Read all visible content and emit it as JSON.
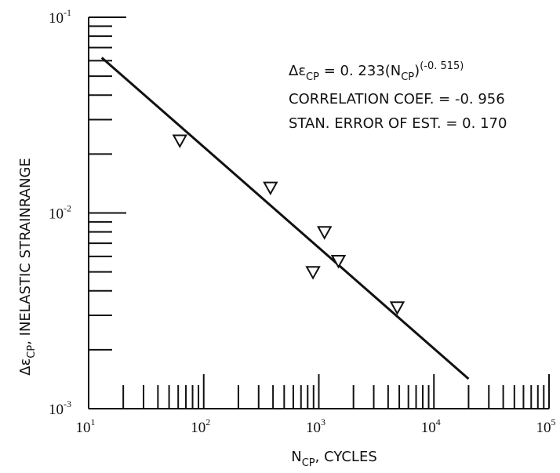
{
  "chart_data": {
    "type": "scatter",
    "title": "",
    "x_scale": "log",
    "y_scale": "log",
    "xlim": [
      10,
      100000
    ],
    "ylim": [
      0.001,
      0.1
    ],
    "grid": false,
    "xlabel": {
      "main": "N",
      "sub": "CP",
      "rest": ", CYCLES"
    },
    "ylabel": {
      "pre": "Δε",
      "sub": "CP",
      "rest": ", INELASTIC STRAINRANGE"
    },
    "x_ticks": [
      {
        "base": "10",
        "exp": "1"
      },
      {
        "base": "10",
        "exp": "2"
      },
      {
        "base": "10",
        "exp": "3"
      },
      {
        "base": "10",
        "exp": "4"
      },
      {
        "base": "10",
        "exp": "5"
      }
    ],
    "y_ticks": [
      {
        "base": "10",
        "exp": "-1"
      },
      {
        "base": "10",
        "exp": "-2"
      },
      {
        "base": "10",
        "exp": "-3"
      }
    ],
    "marker": "down-triangle",
    "points": [
      {
        "x": 62,
        "y": 0.0235
      },
      {
        "x": 380,
        "y": 0.0135
      },
      {
        "x": 890,
        "y": 0.005
      },
      {
        "x": 1120,
        "y": 0.008
      },
      {
        "x": 1480,
        "y": 0.0057
      },
      {
        "x": 4800,
        "y": 0.0033
      }
    ],
    "fit": {
      "coefficient": 0.233,
      "exponent": -0.515,
      "x_range": [
        13,
        20000
      ]
    },
    "annotations": {
      "equation": {
        "pre": "Δε",
        "sub": "CP",
        "mid": " = 0. 233(N",
        "sub2": "CP",
        "close": ")",
        "sup": "(-0. 515)"
      },
      "correlation": "CORRELATION COEF.  = -0. 956",
      "stan_error": "STAN. ERROR OF EST.  = 0. 170"
    }
  }
}
